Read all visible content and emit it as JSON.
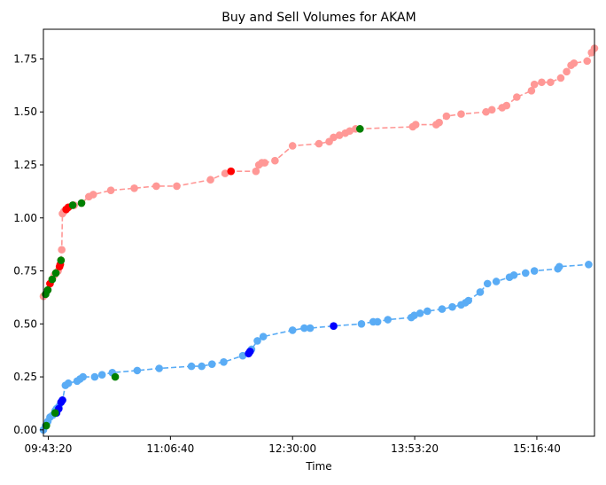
{
  "chart_data": {
    "type": "line",
    "title": "Buy and Sell Volumes for AKAM",
    "xlabel": "Time",
    "ylabel": "",
    "grid": false,
    "legend": "none",
    "x_axis": {
      "type": "time",
      "ticks": [
        {
          "label": "09:43:20",
          "t": "09:43:20"
        },
        {
          "label": "11:06:40",
          "t": "11:06:40"
        },
        {
          "label": "12:30:00",
          "t": "12:30:00"
        },
        {
          "label": "13:53:20",
          "t": "13:53:20"
        },
        {
          "label": "15:16:40",
          "t": "15:16:40"
        }
      ],
      "range": [
        "09:40:00",
        "15:56:00"
      ]
    },
    "y_axis": {
      "ticks": [
        "0.00",
        "0.25",
        "0.50",
        "0.75",
        "1.00",
        "1.25",
        "1.50",
        "1.75"
      ],
      "ylim": [
        -0.03,
        1.89
      ]
    },
    "series": [
      {
        "color": "#ff9896",
        "linestyle": "dashed",
        "points": [
          [
            "09:40:00",
            0.63
          ],
          [
            "09:41:30",
            0.64
          ],
          [
            "09:43:00",
            0.66
          ],
          [
            "09:44:30",
            0.69
          ],
          [
            "09:46:00",
            0.71
          ],
          [
            "09:47:30",
            0.73
          ],
          [
            "09:48:30",
            0.74
          ],
          [
            "09:50:00",
            0.75
          ],
          [
            "09:51:00",
            0.77
          ],
          [
            "09:51:30",
            0.78
          ],
          [
            "09:52:00",
            0.8
          ],
          [
            "09:52:30",
            0.85
          ],
          [
            "09:53:00",
            1.02
          ],
          [
            "09:54:00",
            1.03
          ],
          [
            "09:55:30",
            1.04
          ],
          [
            "09:57:00",
            1.05
          ],
          [
            "10:00:00",
            1.06
          ],
          [
            "10:01:00",
            1.06
          ],
          [
            "10:06:00",
            1.07
          ],
          [
            "10:11:00",
            1.1
          ],
          [
            "10:14:00",
            1.11
          ],
          [
            "10:26:00",
            1.13
          ],
          [
            "10:42:00",
            1.14
          ],
          [
            "10:57:00",
            1.15
          ],
          [
            "11:11:00",
            1.15
          ],
          [
            "11:34:00",
            1.18
          ],
          [
            "11:44:00",
            1.21
          ],
          [
            "11:48:00",
            1.22
          ],
          [
            "12:05:00",
            1.22
          ],
          [
            "12:07:00",
            1.25
          ],
          [
            "12:09:00",
            1.26
          ],
          [
            "12:11:00",
            1.26
          ],
          [
            "12:18:00",
            1.27
          ],
          [
            "12:30:00",
            1.34
          ],
          [
            "12:48:00",
            1.35
          ],
          [
            "12:55:00",
            1.36
          ],
          [
            "12:58:00",
            1.38
          ],
          [
            "13:02:00",
            1.39
          ],
          [
            "13:06:00",
            1.4
          ],
          [
            "13:09:00",
            1.41
          ],
          [
            "13:13:00",
            1.42
          ],
          [
            "13:16:00",
            1.42
          ],
          [
            "13:52:00",
            1.43
          ],
          [
            "13:54:00",
            1.44
          ],
          [
            "14:08:00",
            1.44
          ],
          [
            "14:10:00",
            1.45
          ],
          [
            "14:15:00",
            1.48
          ],
          [
            "14:25:00",
            1.49
          ],
          [
            "14:42:00",
            1.5
          ],
          [
            "14:46:00",
            1.51
          ],
          [
            "14:53:00",
            1.52
          ],
          [
            "14:56:00",
            1.53
          ],
          [
            "15:03:00",
            1.57
          ],
          [
            "15:13:00",
            1.6
          ],
          [
            "15:15:00",
            1.63
          ],
          [
            "15:20:00",
            1.64
          ],
          [
            "15:26:00",
            1.64
          ],
          [
            "15:33:00",
            1.66
          ],
          [
            "15:37:00",
            1.69
          ],
          [
            "15:40:00",
            1.72
          ],
          [
            "15:42:00",
            1.73
          ],
          [
            "15:51:00",
            1.74
          ],
          [
            "15:54:00",
            1.78
          ],
          [
            "15:56:00",
            1.8
          ]
        ],
        "highlights_red": [
          [
            "09:44:30",
            0.69
          ],
          [
            "09:51:00",
            0.77
          ],
          [
            "09:51:30",
            0.78
          ],
          [
            "09:55:30",
            1.04
          ],
          [
            "09:57:00",
            1.05
          ],
          [
            "11:48:00",
            1.22
          ]
        ],
        "highlights_green": [
          [
            "09:41:30",
            0.64
          ],
          [
            "09:43:00",
            0.66
          ],
          [
            "09:46:00",
            0.71
          ],
          [
            "09:48:30",
            0.74
          ],
          [
            "09:52:00",
            0.8
          ],
          [
            "10:00:00",
            1.06
          ],
          [
            "10:06:00",
            1.07
          ],
          [
            "13:16:00",
            1.42
          ]
        ]
      },
      {
        "color": "#5aacf5",
        "linestyle": "dashed",
        "points": [
          [
            "09:40:00",
            0.0
          ],
          [
            "09:41:30",
            0.02
          ],
          [
            "09:43:00",
            0.04
          ],
          [
            "09:44:30",
            0.06
          ],
          [
            "09:46:30",
            0.07
          ],
          [
            "09:48:00",
            0.09
          ],
          [
            "09:49:00",
            0.1
          ],
          [
            "09:50:30",
            0.11
          ],
          [
            "09:52:00",
            0.13
          ],
          [
            "09:53:00",
            0.14
          ],
          [
            "09:55:00",
            0.21
          ],
          [
            "09:57:00",
            0.22
          ],
          [
            "10:03:00",
            0.23
          ],
          [
            "10:05:00",
            0.24
          ],
          [
            "10:07:00",
            0.25
          ],
          [
            "10:15:00",
            0.25
          ],
          [
            "10:20:00",
            0.26
          ],
          [
            "10:27:00",
            0.27
          ],
          [
            "10:44:00",
            0.28
          ],
          [
            "10:59:00",
            0.29
          ],
          [
            "11:21:00",
            0.3
          ],
          [
            "11:28:00",
            0.3
          ],
          [
            "11:35:00",
            0.31
          ],
          [
            "11:43:00",
            0.32
          ],
          [
            "11:56:00",
            0.35
          ],
          [
            "12:00:00",
            0.36
          ],
          [
            "12:01:00",
            0.37
          ],
          [
            "12:02:00",
            0.38
          ],
          [
            "12:06:00",
            0.42
          ],
          [
            "12:10:00",
            0.44
          ],
          [
            "12:30:00",
            0.47
          ],
          [
            "12:38:00",
            0.48
          ],
          [
            "12:42:00",
            0.48
          ],
          [
            "12:58:00",
            0.49
          ],
          [
            "13:17:00",
            0.5
          ],
          [
            "13:25:00",
            0.51
          ],
          [
            "13:28:00",
            0.51
          ],
          [
            "13:35:00",
            0.52
          ],
          [
            "13:51:00",
            0.53
          ],
          [
            "13:53:00",
            0.54
          ],
          [
            "13:57:00",
            0.55
          ],
          [
            "14:02:00",
            0.56
          ],
          [
            "14:12:00",
            0.57
          ],
          [
            "14:19:00",
            0.58
          ],
          [
            "14:25:00",
            0.59
          ],
          [
            "14:28:00",
            0.6
          ],
          [
            "14:30:00",
            0.61
          ],
          [
            "14:38:00",
            0.65
          ],
          [
            "14:43:00",
            0.69
          ],
          [
            "14:49:00",
            0.7
          ],
          [
            "14:58:00",
            0.72
          ],
          [
            "15:01:00",
            0.73
          ],
          [
            "15:09:00",
            0.74
          ],
          [
            "15:15:00",
            0.75
          ],
          [
            "15:31:00",
            0.76
          ],
          [
            "15:32:00",
            0.77
          ],
          [
            "15:52:00",
            0.78
          ]
        ],
        "highlights_blue": [
          [
            "09:49:00",
            0.08
          ],
          [
            "09:50:30",
            0.1
          ],
          [
            "09:52:00",
            0.13
          ],
          [
            "09:53:00",
            0.14
          ],
          [
            "12:00:00",
            0.36
          ],
          [
            "12:01:00",
            0.37
          ],
          [
            "12:58:00",
            0.49
          ]
        ],
        "highlights_green": [
          [
            "09:42:00",
            0.02
          ],
          [
            "09:48:00",
            0.08
          ],
          [
            "10:29:00",
            0.25
          ]
        ]
      }
    ],
    "colors": {
      "sell": "#ff9896",
      "buy": "#5aacf5",
      "red": "#ff0000",
      "green": "#008000",
      "blue": "#0000ff"
    }
  }
}
